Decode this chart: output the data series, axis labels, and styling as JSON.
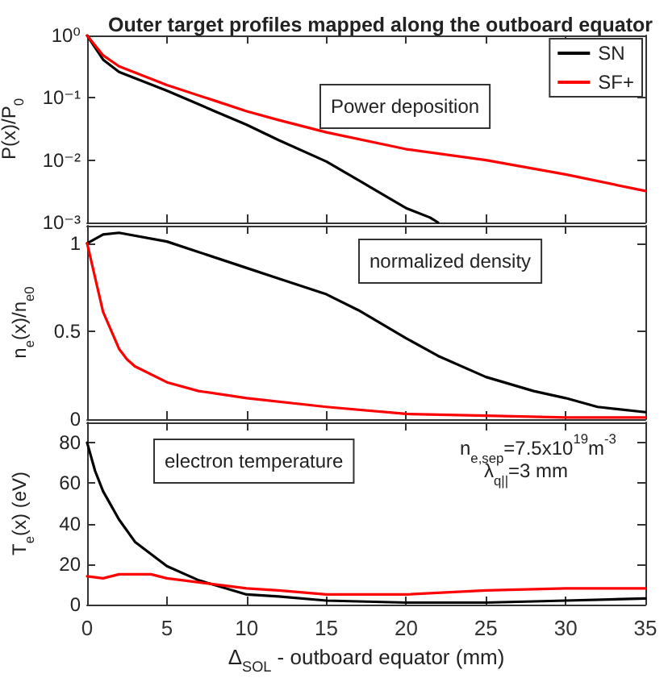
{
  "chart_data": [
    {
      "type": "line",
      "title": "Outer target profiles mapped along the outboard equator",
      "ylabel": "P(x)/P$_{0}$",
      "log": "y",
      "ylim": [
        0.001,
        1
      ],
      "yticks": [
        {
          "value": 0.001,
          "label": "10⁻³"
        },
        {
          "value": 0.01,
          "label": "10⁻²"
        },
        {
          "value": 0.1,
          "label": "10⁻¹"
        },
        {
          "value": 1,
          "label": "10⁰"
        }
      ],
      "xlim": [
        0,
        35
      ],
      "xticks": [
        0,
        5,
        10,
        15,
        20,
        25,
        30,
        35
      ],
      "tick_labels": "y",
      "legend": "top right",
      "annotations": [
        "Power deposition"
      ],
      "series": [
        {
          "name": "SN",
          "color": "#000000",
          "x": [
            0,
            1,
            2,
            5,
            8,
            10,
            12,
            15,
            17,
            19,
            20,
            21.5,
            22
          ],
          "values": [
            1,
            0.41,
            0.26,
            0.13,
            0.061,
            0.037,
            0.021,
            0.0095,
            0.0048,
            0.0024,
            0.0017,
            0.0012,
            0.001
          ]
        },
        {
          "name": "SF+",
          "color": "#ff0000",
          "x": [
            0,
            1,
            2,
            5,
            8,
            10,
            12,
            15,
            20,
            25,
            30,
            35
          ],
          "values": [
            1,
            0.48,
            0.32,
            0.16,
            0.09,
            0.061,
            0.044,
            0.028,
            0.015,
            0.01,
            0.0059,
            0.0032
          ]
        }
      ]
    },
    {
      "type": "line",
      "ylabel": "n$_{e}$(x)/n$_{e0}$",
      "ylim": [
        0,
        1.1
      ],
      "yticks": [
        0,
        0.5,
        1
      ],
      "xlim": [
        0,
        35
      ],
      "xticks": [
        0,
        5,
        10,
        15,
        20,
        25,
        30,
        35
      ],
      "tick_labels": "y",
      "annotations": [
        "normalized density"
      ],
      "series": [
        {
          "color": "#000000",
          "x": [
            0,
            1,
            2,
            5,
            7,
            10,
            12,
            15,
            17,
            20,
            22,
            25,
            28,
            30,
            32,
            35
          ],
          "values": [
            1,
            1.05,
            1.06,
            1.01,
            0.95,
            0.86,
            0.8,
            0.71,
            0.62,
            0.46,
            0.36,
            0.24,
            0.16,
            0.12,
            0.07,
            0.04
          ]
        },
        {
          "color": "#ff0000",
          "x": [
            0,
            1,
            2,
            2.5,
            3,
            5,
            7,
            10,
            15,
            20,
            25,
            30,
            35
          ],
          "values": [
            1,
            0.61,
            0.4,
            0.34,
            0.3,
            0.21,
            0.16,
            0.12,
            0.07,
            0.03,
            0.02,
            0.01,
            0.01
          ]
        }
      ]
    },
    {
      "type": "line",
      "xlabel": "Δ$_{SOL}$ - outboard equator (mm)",
      "ylabel": "T$_{e}$(x) (eV)",
      "ylim": [
        0,
        90
      ],
      "yticks": [
        0,
        20,
        40,
        60,
        80
      ],
      "xlim": [
        0,
        35
      ],
      "xticks": [
        0,
        5,
        10,
        15,
        20,
        25,
        30,
        35
      ],
      "annotations": [
        "electron temperature",
        "n$_{e,sep}$=7.5x10$^{19}$m$^{-3}$",
        "λ$_{q||}$=3 mm"
      ],
      "series": [
        {
          "color": "#000000",
          "x": [
            0,
            0.5,
            1,
            2,
            3,
            4,
            5,
            7,
            10,
            12,
            15,
            20,
            25,
            30,
            35
          ],
          "values": [
            80,
            66,
            56,
            42,
            31,
            25,
            19,
            12,
            5,
            4,
            2,
            1,
            1,
            2,
            3
          ]
        },
        {
          "color": "#ff0000",
          "x": [
            0,
            1,
            2,
            3,
            4,
            5,
            7,
            9,
            10,
            12,
            15,
            18,
            20,
            25,
            30,
            35
          ],
          "values": [
            14,
            13,
            15,
            15,
            15,
            13,
            11,
            9,
            8,
            7,
            5,
            5,
            5,
            7,
            8,
            8
          ]
        }
      ]
    }
  ]
}
